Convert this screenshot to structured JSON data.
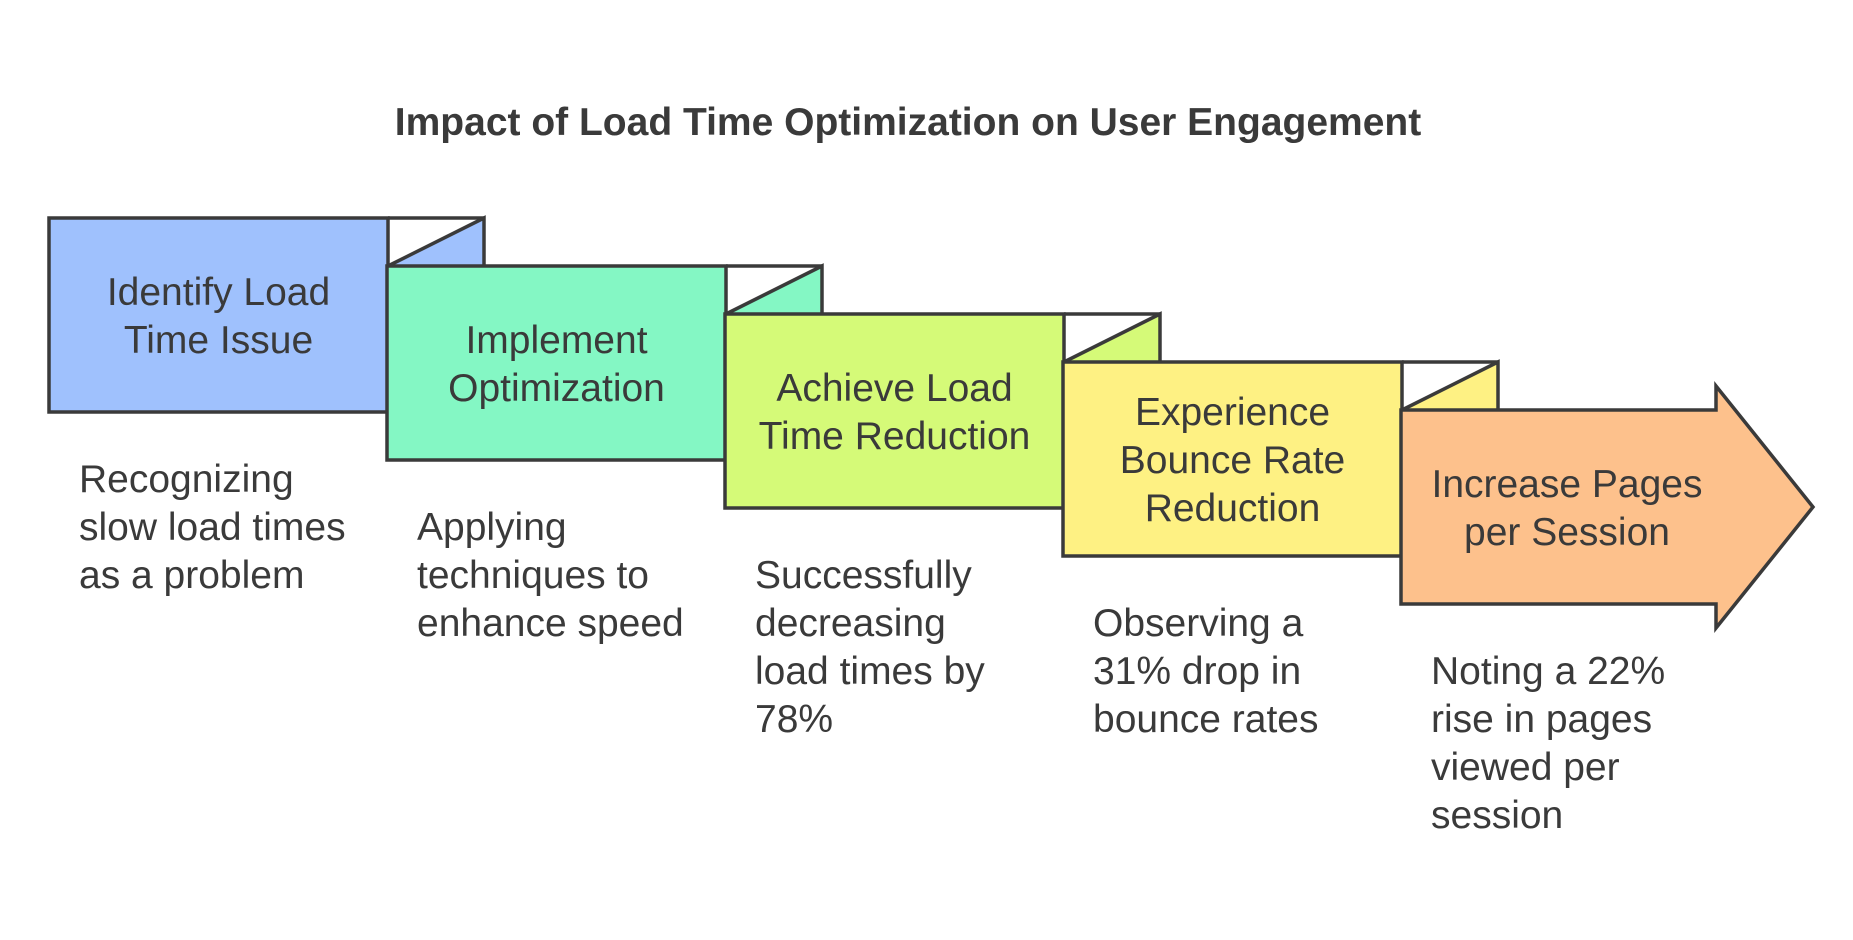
{
  "diagram": {
    "title": "Impact of Load Time Optimization on User Engagement",
    "stroke_color": "#3a3a3a",
    "steps": [
      {
        "label": [
          "Identify Load",
          "Time Issue"
        ],
        "description": [
          "Recognizing",
          "slow load times",
          "as a problem"
        ],
        "color": "#9fc1fd"
      },
      {
        "label": [
          "Implement",
          "Optimization"
        ],
        "description": [
          "Applying",
          "techniques to",
          "enhance speed"
        ],
        "color": "#84f7c4"
      },
      {
        "label": [
          "Achieve Load",
          "Time Reduction"
        ],
        "description": [
          "Successfully",
          "decreasing",
          "load times by",
          "78%"
        ],
        "color": "#d5fa78"
      },
      {
        "label": [
          "Experience",
          "Bounce Rate",
          "Reduction"
        ],
        "description": [
          "Observing a",
          "31% drop in",
          "bounce rates"
        ],
        "color": "#fef183"
      },
      {
        "label": [
          "Increase Pages",
          "per Session"
        ],
        "description": [
          "Noting a 22%",
          "rise in pages",
          "viewed per",
          "session"
        ],
        "color": "#fdc18c"
      }
    ]
  }
}
